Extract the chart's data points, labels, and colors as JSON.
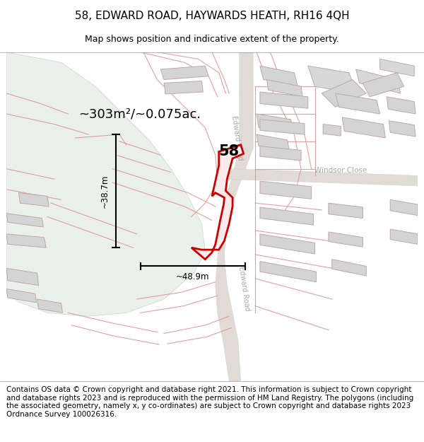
{
  "title": "58, EDWARD ROAD, HAYWARDS HEATH, RH16 4QH",
  "subtitle": "Map shows position and indicative extent of the property.",
  "footer": "Contains OS data © Crown copyright and database right 2021. This information is subject to Crown copyright and database rights 2023 and is reproduced with the permission of HM Land Registry. The polygons (including the associated geometry, namely x, y co-ordinates) are subject to Crown copyright and database rights 2023 Ordnance Survey 100026316.",
  "area_text": "~303m²/~0.075ac.",
  "width_text": "~48.9m",
  "height_text": "~38.7m",
  "property_number": "58",
  "map_bg": "#f2f0ed",
  "green_area_color": "#e8ede8",
  "road_bg": "#e8e4de",
  "plot_outline_color": "#cc0000",
  "plot_fill_color": "#faeaea",
  "building_fill": "#d8d8d8",
  "building_outline": "#c8a8a8",
  "boundary_color": "#e8a0a0",
  "road_stripe_color": "#cccccc",
  "road_label_color": "#aaaaaa",
  "title_fontsize": 11,
  "subtitle_fontsize": 9,
  "footer_fontsize": 7.5
}
